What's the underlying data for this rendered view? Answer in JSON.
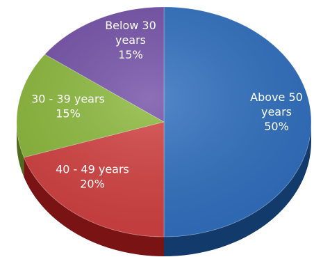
{
  "chart_data": {
    "type": "pie",
    "title": "",
    "categories": [
      "Above 50 years",
      "40 - 49 years",
      "30 - 39 years",
      "Below 30 years"
    ],
    "values": [
      50,
      20,
      15,
      15
    ],
    "unit": "%",
    "slices": [
      {
        "name": "Above 50 years",
        "value": 50,
        "label_lines": [
          "Above 50",
          "years",
          "50%"
        ],
        "color": "#2f6fbf",
        "side_color": "#123a6b"
      },
      {
        "name": "40 - 49 years",
        "value": 20,
        "label_lines": [
          "40 - 49 years",
          "20%"
        ],
        "color": "#d23f3f",
        "side_color": "#7a1414"
      },
      {
        "name": "30 - 39 years",
        "value": 15,
        "label_lines": [
          "30 - 39 years",
          "15%"
        ],
        "color": "#8ab83a",
        "side_color": "#4d6b1a"
      },
      {
        "name": "Below 30 years",
        "value": 15,
        "label_lines": [
          "Below 30",
          "years",
          "15%"
        ],
        "color": "#7450a8",
        "side_color": "#3f2a63"
      }
    ],
    "style": "3d-pie",
    "legend": "none"
  }
}
